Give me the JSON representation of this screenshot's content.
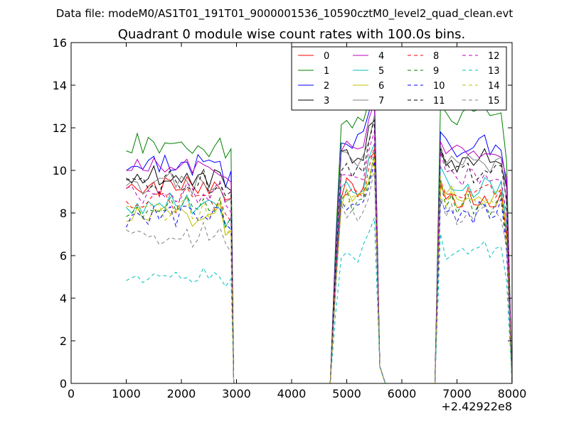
{
  "figure": {
    "suptitle": "Data file: modeM0/AS1T01_191T01_9000001536_10590cztM0_level2_quad_clean.evt",
    "title": "Quadrant 0 module wise count rates with 100.0s bins.",
    "x_offset_label": "+2.42922e8"
  },
  "chart_data": {
    "type": "line",
    "title": "Quadrant 0 module wise count rates with 100.0s bins.",
    "xlabel": "",
    "ylabel": "",
    "xlim": [
      0,
      8000
    ],
    "ylim": [
      0,
      16
    ],
    "x_ticks": [
      0,
      1000,
      2000,
      3000,
      4000,
      5000,
      6000,
      7000,
      8000
    ],
    "y_ticks": [
      0,
      2,
      4,
      6,
      8,
      10,
      12,
      14,
      16
    ],
    "x_tick_labels": [
      "0",
      "1000",
      "2000",
      "3000",
      "4000",
      "5000",
      "6000",
      "7000",
      "8000"
    ],
    "y_tick_labels": [
      "0",
      "2",
      "4",
      "6",
      "8",
      "10",
      "12",
      "14",
      "16"
    ],
    "x_offset": "+2.42922e8",
    "grid": false,
    "legend": {
      "placement": "top-right",
      "columns": 4
    },
    "segments": [
      {
        "x_start": 1000,
        "x_end": 2900,
        "step": 100
      },
      {
        "x_start": 4800,
        "x_end": 5500,
        "step": 100
      },
      {
        "x_start": 6700,
        "x_end": 7900,
        "step": 100
      }
    ],
    "gap_points": [
      [
        2950,
        0
      ],
      [
        3000,
        0
      ],
      [
        4700,
        0
      ],
      [
        4750,
        0
      ],
      [
        5600,
        0
      ],
      [
        5700,
        0
      ],
      [
        6500,
        0
      ],
      [
        6600,
        0
      ],
      [
        8000,
        0
      ]
    ],
    "series": [
      {
        "name": "0",
        "color": "#ff0000",
        "dash": "solid",
        "base": [
          9.3,
          9.1,
          8.6
        ]
      },
      {
        "name": "1",
        "color": "#008000",
        "dash": "solid",
        "base": [
          11.2,
          12.2,
          12.5
        ]
      },
      {
        "name": "2",
        "color": "#0000ff",
        "dash": "solid",
        "base": [
          10.3,
          11.5,
          11.2
        ]
      },
      {
        "name": "3",
        "color": "#000000",
        "dash": "solid",
        "base": [
          9.8,
          10.7,
          10.5
        ]
      },
      {
        "name": "4",
        "color": "#bf00bf",
        "dash": "solid",
        "base": [
          10.0,
          11.0,
          10.9
        ]
      },
      {
        "name": "5",
        "color": "#00bfbf",
        "dash": "solid",
        "base": [
          8.4,
          9.3,
          9.3
        ]
      },
      {
        "name": "6",
        "color": "#bfbf00",
        "dash": "solid",
        "base": [
          7.9,
          8.6,
          8.7
        ]
      },
      {
        "name": "7",
        "color": "#808080",
        "dash": "solid",
        "base": [
          9.4,
          10.6,
          10.5
        ]
      },
      {
        "name": "8",
        "color": "#ff0000",
        "dash": "dashed",
        "base": [
          8.6,
          8.9,
          9.1
        ]
      },
      {
        "name": "9",
        "color": "#008000",
        "dash": "dashed",
        "base": [
          8.3,
          8.6,
          8.5
        ]
      },
      {
        "name": "10",
        "color": "#0000ff",
        "dash": "dashed",
        "base": [
          7.9,
          8.3,
          8.1
        ]
      },
      {
        "name": "11",
        "color": "#000000",
        "dash": "dashed",
        "base": [
          9.5,
          10.2,
          10.0
        ]
      },
      {
        "name": "12",
        "color": "#bf00bf",
        "dash": "dashed",
        "base": [
          8.9,
          9.6,
          9.7
        ]
      },
      {
        "name": "13",
        "color": "#00bfbf",
        "dash": "dashed",
        "base": [
          5.2,
          6.0,
          6.2
        ]
      },
      {
        "name": "14",
        "color": "#bfbf00",
        "dash": "dashed",
        "base": [
          8.1,
          8.6,
          8.7
        ]
      },
      {
        "name": "15",
        "color": "#808080",
        "dash": "dashed",
        "base": [
          7.0,
          8.0,
          7.9
        ]
      }
    ]
  }
}
